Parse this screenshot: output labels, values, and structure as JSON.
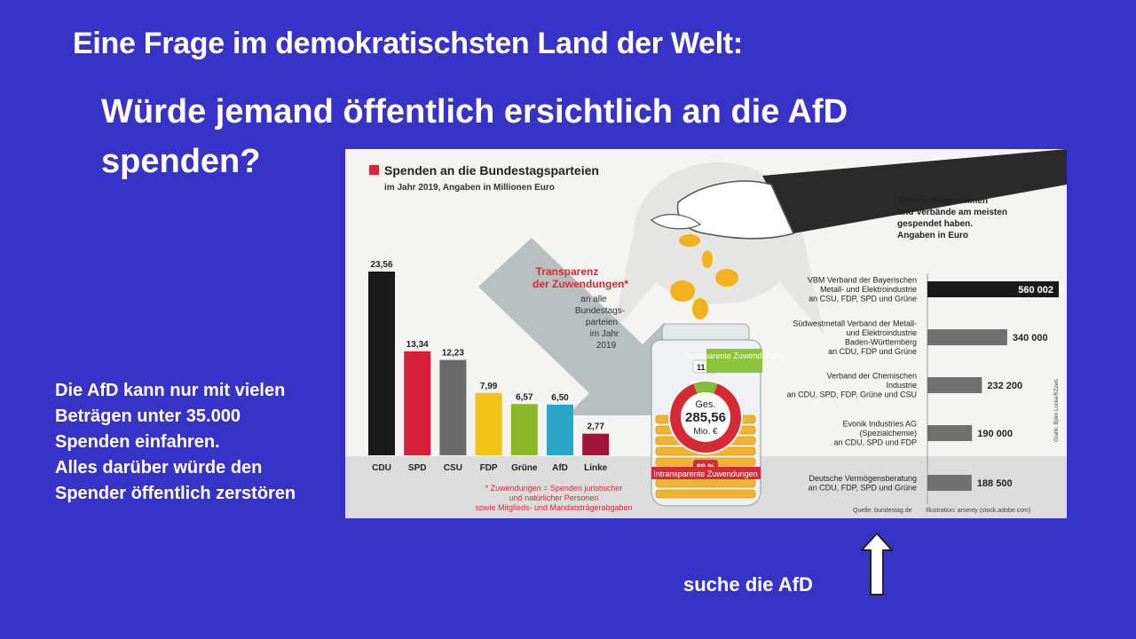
{
  "slide": {
    "title_line1": "Eine Frage im demokratischsten Land der Welt:",
    "title_line2": "Würde jemand öffentlich ersichtlich an die AfD spenden?",
    "left_note": [
      "Die AfD kann nur mit vielen",
      "Beträgen unter 35.000",
      "Spenden einfahren.",
      "Alles darüber würde den",
      "Spender öffentlich zerstören"
    ],
    "hint": "suche die AfD",
    "colors": {
      "background": "#3534c6",
      "text": "#ffffff"
    }
  },
  "chart_data": [
    {
      "type": "bar",
      "title": "Spenden an die Bundestagsparteien",
      "subtitle": "im Jahr 2019, Angaben in Millionen Euro",
      "categories": [
        "CDU",
        "SPD",
        "CSU",
        "FDP",
        "Grüne",
        "AfD",
        "Linke"
      ],
      "values": [
        23.56,
        13.34,
        12.23,
        7.99,
        6.57,
        6.5,
        2.77
      ],
      "value_labels": [
        "23,56",
        "13,34",
        "12,23",
        "7,99",
        "6,57",
        "6,50",
        "2,77"
      ],
      "colors": [
        "#1a1a1a",
        "#d5203a",
        "#6a6a6a",
        "#f3c316",
        "#8cb827",
        "#2aa6c9",
        "#a0153a"
      ],
      "ylim": [
        0,
        24
      ]
    },
    {
      "type": "pie",
      "center_label": "Ges.",
      "total_label": "285,56",
      "unit_label": "Mio. €",
      "slices": [
        {
          "name": "Transparente Zuwendungen",
          "percent": 11,
          "label": "11 %",
          "color": "#7fbf3a"
        },
        {
          "name": "Intransparente Zuwendungen",
          "percent": 89,
          "label": "89 %",
          "color": "#d52a36"
        }
      ],
      "arrow_text": [
        "Transparenz",
        "der Zuwendungen*"
      ],
      "arrow_subtext": [
        "an alle",
        "Bundestags-",
        "parteien",
        "im Jahr",
        "2019"
      ],
      "footnote": [
        "* Zuwendungen = Spenden juristischer",
        "und natürlicher Personen",
        "sowie Mitglieds- und Mandatsträgerabgaben"
      ]
    },
    {
      "type": "bar",
      "orientation": "horizontal",
      "title": [
        "Welche Unternehmen",
        "und Verbände am meisten",
        "gespendet haben.",
        "Angaben in Euro"
      ],
      "categories": [
        [
          "VBM Verband der Bayerischen",
          "Metall- und Elektroindustrie",
          "an CSU, FDP, SPD und Grüne"
        ],
        [
          "Südwestmetall Verband der Metall-",
          "und Elektroindustrie",
          "Baden-Württemberg",
          "an CDU, FDP und Grüne"
        ],
        [
          "Verband der Chemischen",
          "Industrie",
          "an CDU, SPD, FDP, Grüne und CSU"
        ],
        [
          "Evonik Industries AG",
          "(Spezialchemie)",
          "an CDU, SPD und FDP"
        ],
        [
          "Deutsche Vermögensberatung",
          "an CDU, FDP, SPD und Grüne"
        ]
      ],
      "values": [
        560002,
        340000,
        232200,
        190000,
        188500
      ],
      "value_labels": [
        "560 002",
        "340 000",
        "232 200",
        "190 000",
        "188 500"
      ],
      "colors": [
        "#1a1a1a",
        "#707070",
        "#707070",
        "#707070",
        "#707070"
      ],
      "xlim": [
        0,
        560002
      ]
    }
  ],
  "credits": {
    "source": "Quelle: bundestag.de",
    "illustration": "Illustration: arsenty (stock.adobe.com)",
    "graphic": "Grafik: Björn Locke/RZzeit."
  }
}
